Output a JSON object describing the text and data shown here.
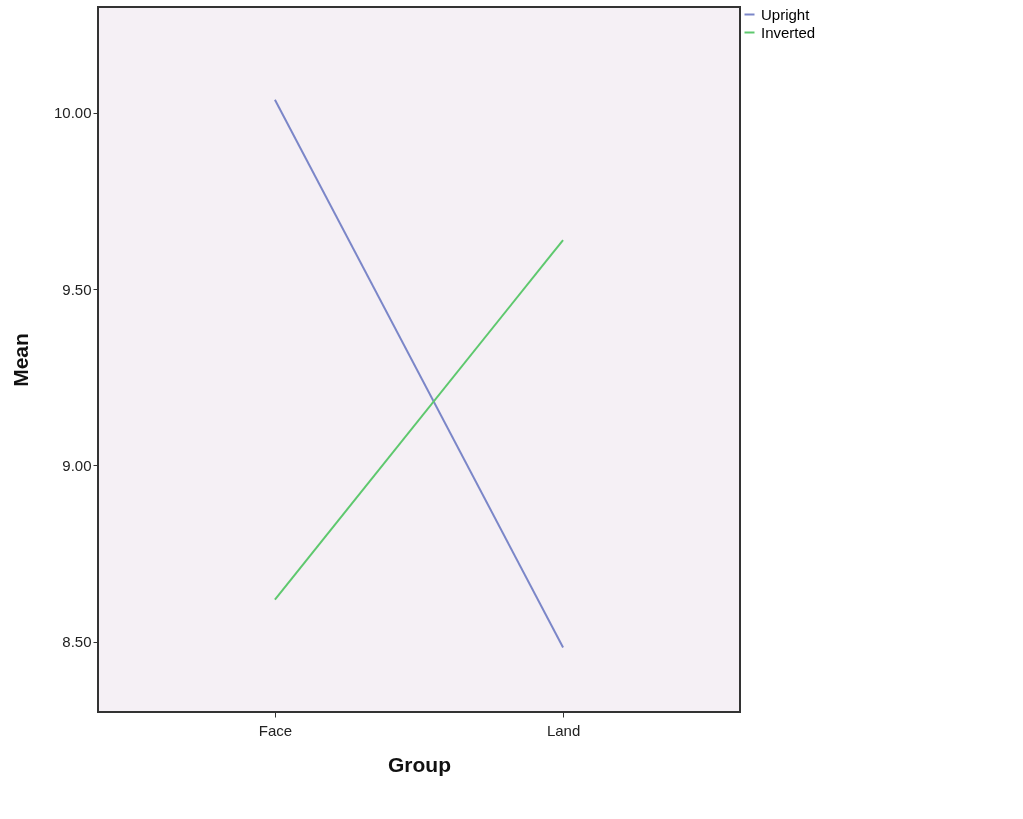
{
  "chart_data": {
    "type": "line",
    "xlabel": "Group",
    "ylabel": "Mean",
    "categories": [
      "Face",
      "Land"
    ],
    "series": [
      {
        "name": "Upright",
        "color": "#7b86c8",
        "values": [
          10.037,
          8.483
        ]
      },
      {
        "name": "Inverted",
        "color": "#5ec86e",
        "values": [
          8.619,
          9.639
        ]
      }
    ],
    "ylim": [
      8.3,
      10.3
    ],
    "yticks": [
      {
        "value": 8.5,
        "label": "8.50"
      },
      {
        "value": 9.0,
        "label": "9.00"
      },
      {
        "value": 9.5,
        "label": "9.50"
      },
      {
        "value": 10.0,
        "label": "10.00"
      }
    ],
    "grid": false,
    "legend": "top right",
    "marker": "none",
    "line_style": "solid"
  }
}
